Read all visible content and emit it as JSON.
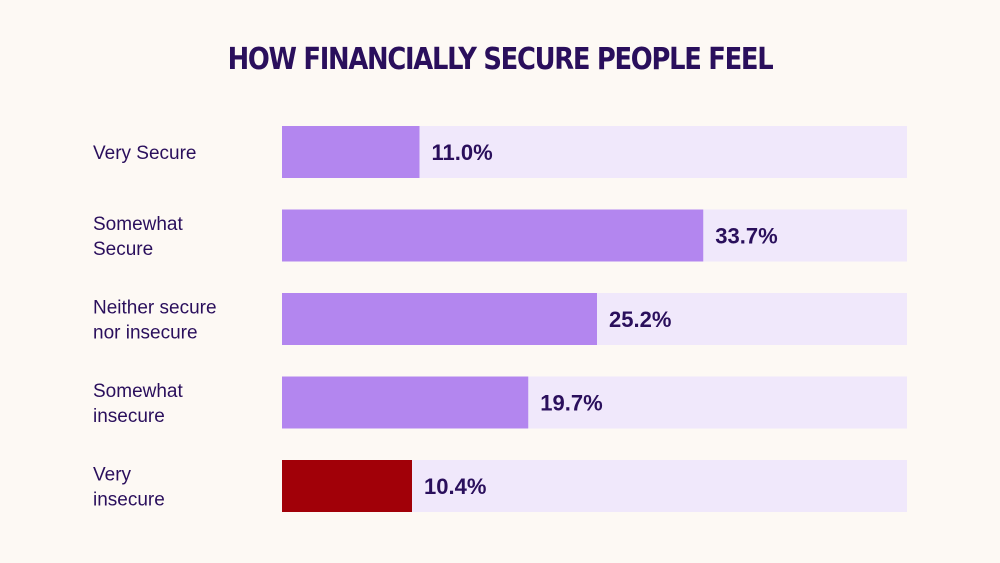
{
  "chart_data": {
    "type": "bar",
    "orientation": "horizontal",
    "title": "HOW FINANCIALLY SECURE PEOPLE FEEL",
    "categories": [
      [
        "Very Secure"
      ],
      [
        "Somewhat",
        "Secure"
      ],
      [
        "Neither secure",
        "nor insecure"
      ],
      [
        "Somewhat",
        "insecure"
      ],
      [
        "Very",
        "insecure"
      ]
    ],
    "values": [
      11.0,
      33.7,
      25.2,
      19.7,
      10.4
    ],
    "value_labels": [
      "11.0%",
      "33.7%",
      "25.2%",
      "19.7%",
      "10.4%"
    ],
    "xlim": [
      0,
      50
    ],
    "grid": false,
    "colors": {
      "bar": "#b386ef",
      "highlight": "#a10008",
      "track": "#f0e8fb",
      "text": "#2a0f5c",
      "background": "#fdf9f4"
    },
    "highlight_index": 4
  }
}
